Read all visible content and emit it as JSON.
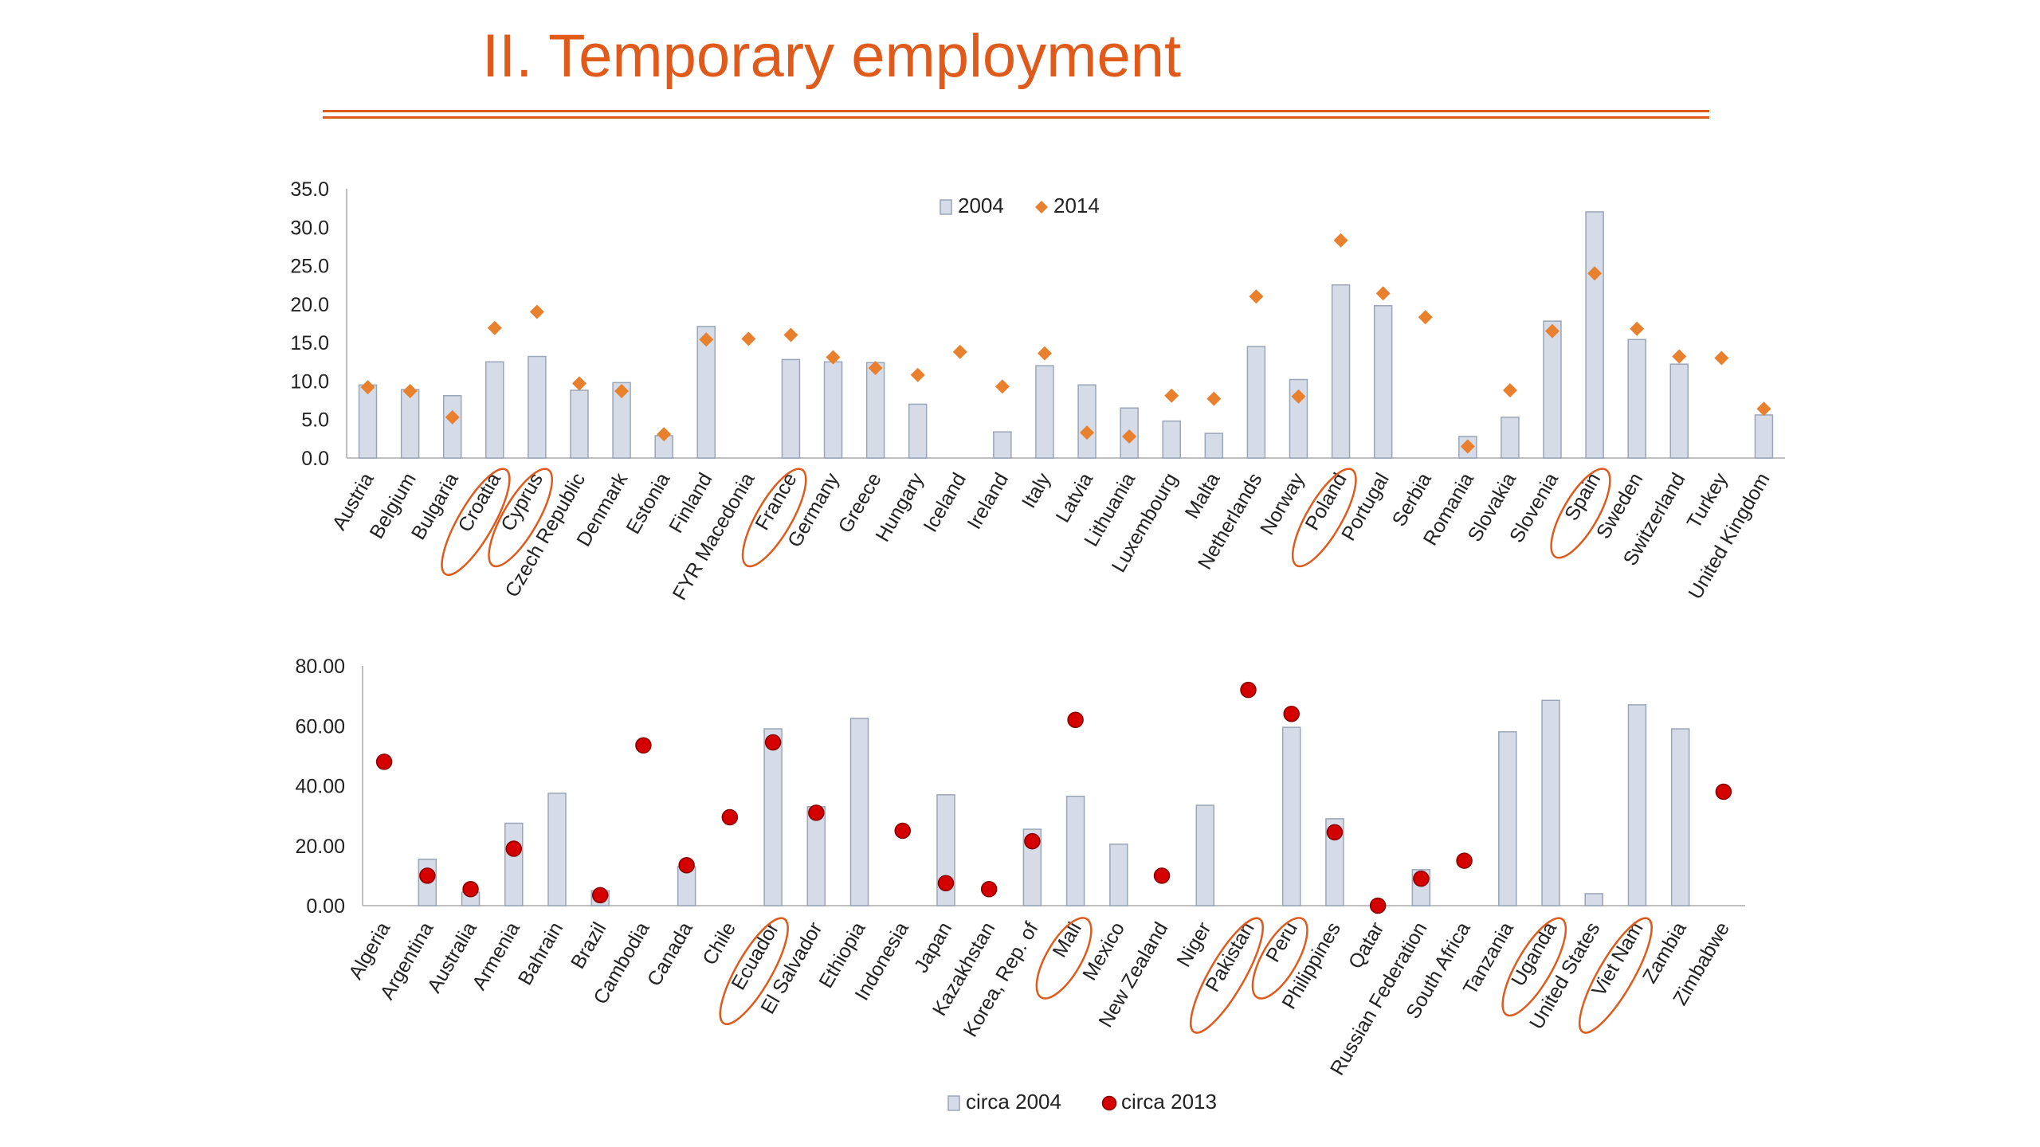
{
  "slide": {
    "title": "II. Temporary employment",
    "accent_color": "#e05a1c"
  },
  "chart_data": [
    {
      "type": "bar",
      "title": "",
      "xlabel": "",
      "ylabel": "",
      "ylim": [
        0,
        35
      ],
      "yticks": [
        "0.0",
        "5.0",
        "10.0",
        "15.0",
        "20.0",
        "25.0",
        "30.0",
        "35.0"
      ],
      "grid": false,
      "legend_position": "top-center",
      "categories": [
        "Austria",
        "Belgium",
        "Bulgaria",
        "Croatia",
        "Cyprus",
        "Czech Republic",
        "Denmark",
        "Estonia",
        "Finland",
        "FYR Macedonia",
        "France",
        "Germany",
        "Greece",
        "Hungary",
        "Iceland",
        "Ireland",
        "Italy",
        "Latvia",
        "Lithuania",
        "Luxembourg",
        "Malta",
        "Netherlands",
        "Norway",
        "Poland",
        "Portugal",
        "Serbia",
        "Romania",
        "Slovakia",
        "Slovenia",
        "Spain",
        "Sweden",
        "Switzerland",
        "Turkey",
        "United Kingdom"
      ],
      "circled": [
        "Croatia",
        "Cyprus",
        "France",
        "Poland",
        "Spain"
      ],
      "series": [
        {
          "name": "2004",
          "mark": "bar",
          "color": "#d5dce7",
          "stroke": "#9aa6b8",
          "values": [
            9.5,
            8.9,
            8.1,
            12.5,
            13.2,
            8.8,
            9.8,
            2.9,
            17.1,
            null,
            12.8,
            12.5,
            12.4,
            7.0,
            null,
            3.4,
            12.0,
            9.5,
            6.5,
            4.8,
            3.2,
            14.5,
            10.2,
            22.5,
            19.8,
            null,
            2.8,
            5.3,
            17.8,
            32.0,
            15.4,
            12.2,
            null,
            5.6
          ]
        },
        {
          "name": "2014",
          "mark": "diamond",
          "color": "#e8802e",
          "values": [
            9.2,
            8.7,
            5.3,
            16.9,
            19.0,
            9.7,
            8.7,
            3.1,
            15.4,
            15.5,
            16.0,
            13.1,
            11.7,
            10.8,
            13.8,
            9.3,
            13.6,
            3.3,
            2.8,
            8.1,
            7.7,
            21.0,
            8.0,
            28.3,
            21.4,
            18.3,
            1.5,
            8.8,
            16.5,
            24.0,
            16.8,
            13.2,
            13.0,
            6.4
          ]
        }
      ]
    },
    {
      "type": "bar",
      "title": "",
      "xlabel": "",
      "ylabel": "",
      "ylim": [
        0,
        80
      ],
      "yticks": [
        "0.00",
        "20.00",
        "40.00",
        "60.00",
        "80.00"
      ],
      "grid": false,
      "legend_position": "bottom-center",
      "categories": [
        "Algeria",
        "Argentina",
        "Australia",
        "Armenia",
        "Bahrain",
        "Brazil",
        "Cambodia",
        "Canada",
        "Chile",
        "Ecuador",
        "El Salvador",
        "Ethiopia",
        "Indonesia",
        "Japan",
        "Kazakhstan",
        "Korea, Rep. of",
        "Mali",
        "Mexico",
        "New Zealand",
        "Niger",
        "Pakistan",
        "Peru",
        "Philippines",
        "Qatar",
        "Russian Federation",
        "South Africa",
        "Tanzania",
        "Uganda",
        "United States",
        "Viet Nam",
        "Zambia",
        "Zimbabwe"
      ],
      "circled": [
        "Ecuador",
        "Mali",
        "Pakistan",
        "Peru",
        "Uganda",
        "Viet Nam"
      ],
      "series": [
        {
          "name": "circa 2004",
          "mark": "bar",
          "color": "#d5dce7",
          "stroke": "#9aa6b8",
          "values": [
            null,
            15.5,
            4.5,
            27.5,
            37.5,
            5.0,
            null,
            13.0,
            null,
            59.0,
            33.0,
            62.5,
            null,
            37.0,
            null,
            25.5,
            36.5,
            20.5,
            null,
            33.5,
            null,
            59.5,
            29.0,
            null,
            12.0,
            null,
            58.0,
            68.5,
            4.0,
            67.0,
            59.0,
            null
          ]
        },
        {
          "name": "circa 2013",
          "mark": "dot",
          "color": "#d40000",
          "values": [
            48.0,
            10.0,
            5.5,
            19.0,
            null,
            3.5,
            53.5,
            13.5,
            29.5,
            54.5,
            31.0,
            null,
            25.0,
            7.5,
            5.5,
            21.5,
            62.0,
            null,
            10.0,
            null,
            72.0,
            64.0,
            24.5,
            0.0,
            9.0,
            15.0,
            null,
            null,
            null,
            null,
            null,
            38.0
          ]
        }
      ]
    }
  ]
}
